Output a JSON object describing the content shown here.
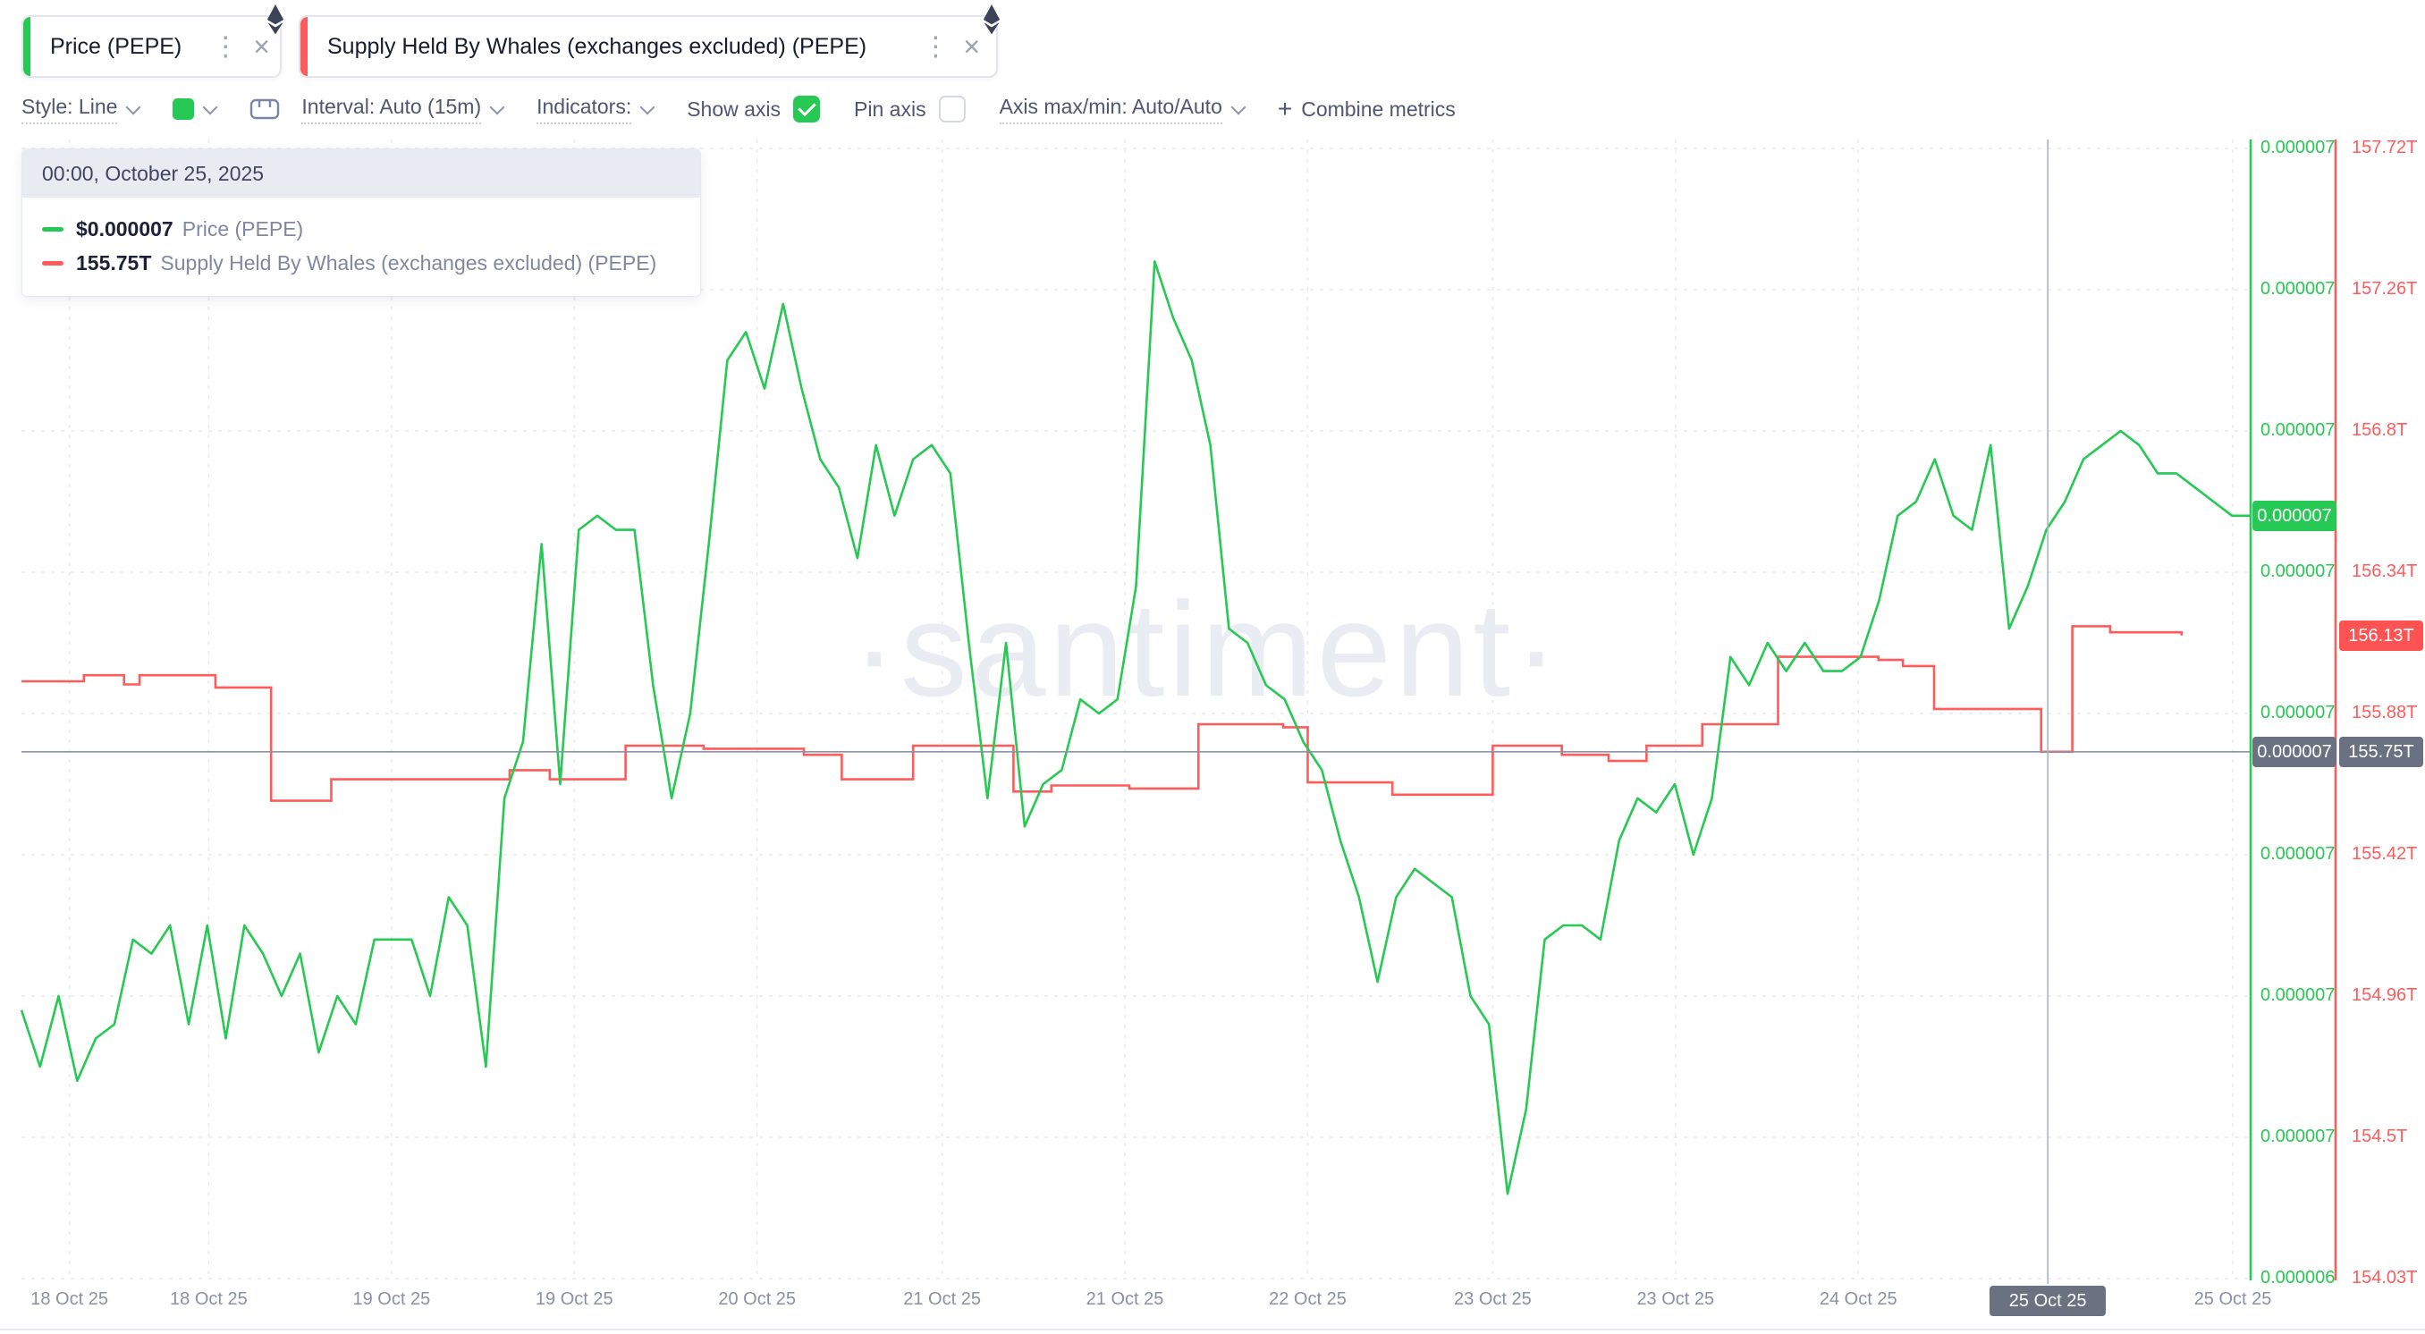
{
  "tabs": [
    {
      "label": "Price (PEPE)",
      "accent": "#26c953"
    },
    {
      "label": "Supply Held By Whales (exchanges excluded) (PEPE)",
      "accent": "#ff5b5b"
    }
  ],
  "toolbar": {
    "style_label": "Style: Line",
    "interval_label": "Interval: Auto (15m)",
    "indicators_label": "Indicators:",
    "show_axis_label": "Show axis",
    "pin_axis_label": "Pin axis",
    "axis_maxmin_label": "Axis max/min: Auto/Auto",
    "plus": "+",
    "combine_metrics_label": "Combine metrics",
    "swatch_color": "#26c953"
  },
  "tooltip": {
    "timestamp": "00:00, October 25, 2025",
    "rows": [
      {
        "value": "$0.000007",
        "label": "Price (PEPE)",
        "color": "#26c953"
      },
      {
        "value": "155.75T",
        "label": "Supply Held By Whales (exchanges excluded) (PEPE)",
        "color": "#ff5b5b"
      }
    ]
  },
  "watermark": "·santiment·",
  "axes": {
    "price_badge": {
      "text": "0.000007",
      "value_micro_usd": 6.94
    },
    "supply_badge": {
      "text": "156.13T",
      "value_T": 156.13
    },
    "crosshair": {
      "t": 0.909,
      "supply_value": 155.75,
      "price_badge_text": "0.000007",
      "supply_badge_text": "155.75T",
      "date_label": "25 Oct 25"
    }
  },
  "chart_data": {
    "type": "line",
    "title": "",
    "legend_position": "top-left tooltip",
    "grid": true,
    "y_axis_price": {
      "side": "right-inner",
      "color": "#26c953",
      "unit": "USD",
      "tick_values_micro_usd": [
        7.2,
        7.1,
        7.0,
        6.9,
        6.8,
        6.7,
        6.6,
        6.5,
        6.4
      ],
      "tick_labels": [
        "0.000007",
        "0.000007",
        "0.000007",
        "0.000007",
        "0.000007",
        "0.000007",
        "0.000007",
        "0.000007",
        "0.000006"
      ]
    },
    "y_axis_supply": {
      "side": "right-outer",
      "color": "#ff5b5b",
      "unit": "T tokens",
      "tick_values_T": [
        157.72,
        157.26,
        156.8,
        156.34,
        155.88,
        155.42,
        154.96,
        154.5,
        154.03
      ],
      "tick_labels": [
        "157.72T",
        "157.26T",
        "156.8T",
        "156.34T",
        "155.88T",
        "155.42T",
        "154.96T",
        "154.5T",
        "154.03T"
      ]
    },
    "x_axis": {
      "labels": [
        {
          "t": 0.0215,
          "label": "18 Oct 25"
        },
        {
          "t": 0.084,
          "label": "18 Oct 25"
        },
        {
          "t": 0.166,
          "label": "19 Oct 25"
        },
        {
          "t": 0.248,
          "label": "19 Oct 25"
        },
        {
          "t": 0.33,
          "label": "20 Oct 25"
        },
        {
          "t": 0.413,
          "label": "21 Oct 25"
        },
        {
          "t": 0.495,
          "label": "21 Oct 25"
        },
        {
          "t": 0.577,
          "label": "22 Oct 25"
        },
        {
          "t": 0.66,
          "label": "23 Oct 25"
        },
        {
          "t": 0.742,
          "label": "23 Oct 25"
        },
        {
          "t": 0.824,
          "label": "24 Oct 25"
        },
        {
          "t": 0.909,
          "label": "25 Oct 25",
          "highlighted": true
        },
        {
          "t": 0.992,
          "label": "25 Oct 25"
        }
      ]
    },
    "series": [
      {
        "name": "Price (PEPE)",
        "color": "#26c953",
        "style": "line",
        "unit": "USD (values in 1e-6 USD)",
        "values_micro_usd": [
          6.59,
          6.55,
          6.6,
          6.54,
          6.57,
          6.58,
          6.64,
          6.63,
          6.65,
          6.58,
          6.65,
          6.57,
          6.65,
          6.63,
          6.6,
          6.63,
          6.56,
          6.6,
          6.58,
          6.64,
          6.64,
          6.64,
          6.6,
          6.67,
          6.65,
          6.55,
          6.74,
          6.78,
          6.92,
          6.75,
          6.93,
          6.94,
          6.93,
          6.93,
          6.82,
          6.74,
          6.8,
          6.92,
          7.05,
          7.07,
          7.03,
          7.09,
          7.03,
          6.98,
          6.96,
          6.91,
          6.99,
          6.94,
          6.98,
          6.99,
          6.97,
          6.85,
          6.74,
          6.85,
          6.72,
          6.75,
          6.76,
          6.81,
          6.8,
          6.81,
          6.89,
          7.12,
          7.08,
          7.05,
          6.99,
          6.86,
          6.85,
          6.82,
          6.81,
          6.78,
          6.76,
          6.71,
          6.67,
          6.61,
          6.67,
          6.69,
          6.68,
          6.67,
          6.6,
          6.58,
          6.46,
          6.52,
          6.64,
          6.65,
          6.65,
          6.64,
          6.71,
          6.74,
          6.73,
          6.75,
          6.7,
          6.74,
          6.84,
          6.82,
          6.85,
          6.83,
          6.85,
          6.83,
          6.83,
          6.84,
          6.88,
          6.94,
          6.95,
          6.98,
          6.94,
          6.93,
          6.99,
          6.86,
          6.89,
          6.93,
          6.95,
          6.98,
          6.99,
          7.0,
          6.99,
          6.97,
          6.97,
          6.96,
          6.95,
          6.94,
          6.94
        ]
      },
      {
        "name": "Supply Held By Whales (exchanges excluded) (PEPE)",
        "color": "#ff5b5b",
        "style": "step",
        "unit": "T tokens",
        "points": [
          {
            "t": 0,
            "v": 155.98
          },
          {
            "t": 0.028,
            "v": 156.0
          },
          {
            "t": 0.046,
            "v": 155.97
          },
          {
            "t": 0.053,
            "v": 156.0
          },
          {
            "t": 0.087,
            "v": 155.96
          },
          {
            "t": 0.112,
            "v": 155.59
          },
          {
            "t": 0.139,
            "v": 155.66
          },
          {
            "t": 0.219,
            "v": 155.69
          },
          {
            "t": 0.237,
            "v": 155.66
          },
          {
            "t": 0.271,
            "v": 155.77
          },
          {
            "t": 0.306,
            "v": 155.76
          },
          {
            "t": 0.351,
            "v": 155.74
          },
          {
            "t": 0.368,
            "v": 155.66
          },
          {
            "t": 0.4,
            "v": 155.77
          },
          {
            "t": 0.445,
            "v": 155.62
          },
          {
            "t": 0.462,
            "v": 155.64
          },
          {
            "t": 0.497,
            "v": 155.63
          },
          {
            "t": 0.528,
            "v": 155.84
          },
          {
            "t": 0.566,
            "v": 155.83
          },
          {
            "t": 0.577,
            "v": 155.65
          },
          {
            "t": 0.615,
            "v": 155.61
          },
          {
            "t": 0.66,
            "v": 155.77
          },
          {
            "t": 0.691,
            "v": 155.74
          },
          {
            "t": 0.712,
            "v": 155.72
          },
          {
            "t": 0.729,
            "v": 155.77
          },
          {
            "t": 0.754,
            "v": 155.84
          },
          {
            "t": 0.788,
            "v": 156.06
          },
          {
            "t": 0.833,
            "v": 156.05
          },
          {
            "t": 0.844,
            "v": 156.03
          },
          {
            "t": 0.858,
            "v": 155.89
          },
          {
            "t": 0.906,
            "v": 155.75
          },
          {
            "t": 0.92,
            "v": 156.16
          },
          {
            "t": 0.937,
            "v": 156.14
          },
          {
            "t": 0.969,
            "v": 156.13
          }
        ]
      }
    ]
  }
}
